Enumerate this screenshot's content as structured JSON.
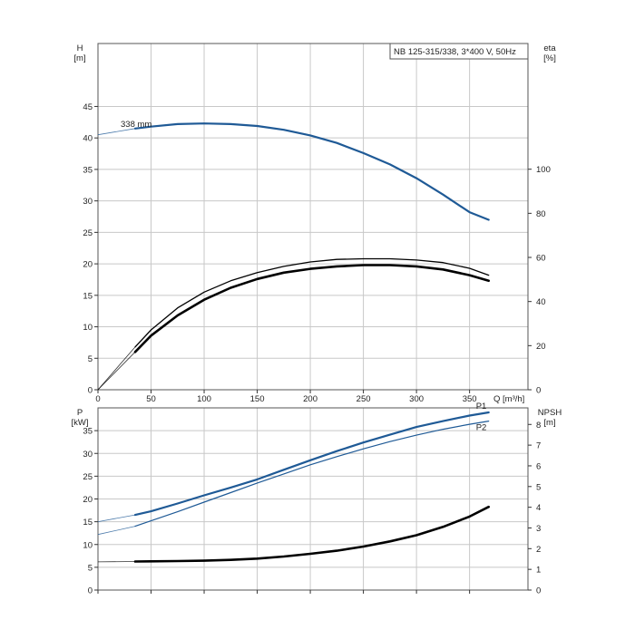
{
  "chart_data": [
    {
      "type": "line",
      "title": "NB 125-315/338, 3*400 V, 50Hz",
      "xlabel": "Q [m³/h]",
      "ylabel": "H\n[m]",
      "ylabel_right": "eta\n[%]",
      "xlim": [
        0,
        405
      ],
      "ylim": [
        0,
        55
      ],
      "ylim_right": [
        0,
        157
      ],
      "x_ticks": [
        "0",
        "50",
        "100",
        "150",
        "200",
        "250",
        "300",
        "350"
      ],
      "y_ticks": [
        "0",
        "5",
        "10",
        "15",
        "20",
        "25",
        "30",
        "35",
        "40",
        "45"
      ],
      "y_ticks_right": [
        "0",
        "20",
        "40",
        "60",
        "80",
        "100"
      ],
      "grid": true,
      "annotations": [
        "338 mm"
      ],
      "series": [
        {
          "name": "",
          "axis": "left",
          "color": "#1f5a96",
          "x_extension": [
            0,
            35
          ],
          "y_extension": [
            40.5,
            41.5
          ],
          "x": [
            35,
            50,
            75,
            100,
            125,
            150,
            175,
            200,
            225,
            250,
            275,
            300,
            325,
            350,
            368
          ],
          "y": [
            41.5,
            41.8,
            42.2,
            42.3,
            42.2,
            41.9,
            41.3,
            40.4,
            39.2,
            37.6,
            35.8,
            33.6,
            31.0,
            28.2,
            27.0
          ]
        },
        {
          "name": "",
          "axis": "left",
          "color": "#000000",
          "x_extension": [
            0,
            35
          ],
          "y_extension": [
            0,
            6.8
          ],
          "x": [
            35,
            50,
            75,
            100,
            125,
            150,
            175,
            200,
            225,
            250,
            275,
            300,
            325,
            350,
            368
          ],
          "y": [
            6.8,
            9.5,
            13.0,
            15.5,
            17.3,
            18.6,
            19.6,
            20.3,
            20.7,
            20.8,
            20.8,
            20.6,
            20.2,
            19.3,
            18.2
          ]
        },
        {
          "name": "",
          "axis": "left",
          "color": "#000000",
          "x_extension": [
            0,
            35
          ],
          "y_extension": [
            0,
            6.0
          ],
          "x": [
            35,
            50,
            75,
            100,
            125,
            150,
            175,
            200,
            225,
            250,
            275,
            300,
            325,
            350,
            368
          ],
          "y": [
            6.0,
            8.6,
            11.8,
            14.3,
            16.2,
            17.6,
            18.6,
            19.2,
            19.6,
            19.8,
            19.8,
            19.6,
            19.1,
            18.2,
            17.3
          ]
        }
      ]
    },
    {
      "type": "line",
      "title": "",
      "xlabel": "",
      "ylabel": "P\n[kW]",
      "ylabel_right": "NPSH\n[m]",
      "xlim": [
        0,
        405
      ],
      "ylim": [
        0,
        40
      ],
      "ylim_right": [
        0,
        8.8
      ],
      "y_ticks": [
        "0",
        "5",
        "10",
        "15",
        "20",
        "25",
        "30",
        "35"
      ],
      "y_ticks_right": [
        "0",
        "1",
        "2",
        "3",
        "4",
        "5",
        "6",
        "7",
        "8"
      ],
      "grid": true,
      "series": [
        {
          "name": "P1",
          "axis": "left",
          "color": "#1f5a96",
          "x_extension": [
            0,
            35
          ],
          "y_extension": [
            15.0,
            16.5
          ],
          "x": [
            35,
            50,
            75,
            100,
            125,
            150,
            175,
            200,
            225,
            250,
            275,
            300,
            325,
            350,
            368
          ],
          "y": [
            16.5,
            17.3,
            19.0,
            20.8,
            22.5,
            24.3,
            26.4,
            28.5,
            30.5,
            32.4,
            34.1,
            35.8,
            37.1,
            38.3,
            39.0
          ]
        },
        {
          "name": "P2",
          "axis": "left",
          "color": "#1f5a96",
          "x_extension": [
            0,
            35
          ],
          "y_extension": [
            12.2,
            14.0
          ],
          "x": [
            35,
            50,
            75,
            100,
            125,
            150,
            175,
            200,
            225,
            250,
            275,
            300,
            325,
            350,
            368
          ],
          "y": [
            14.0,
            15.2,
            17.2,
            19.3,
            21.4,
            23.5,
            25.5,
            27.5,
            29.3,
            31.0,
            32.6,
            34.0,
            35.3,
            36.4,
            37.1
          ]
        },
        {
          "name": "",
          "axis": "right",
          "color": "#000000",
          "x_extension": [
            0,
            35
          ],
          "y_extension": [
            1.36,
            1.38
          ],
          "x": [
            35,
            50,
            75,
            100,
            125,
            150,
            175,
            200,
            225,
            250,
            275,
            300,
            325,
            350,
            368
          ],
          "y": [
            1.38,
            1.39,
            1.4,
            1.42,
            1.46,
            1.52,
            1.62,
            1.75,
            1.9,
            2.1,
            2.35,
            2.65,
            3.05,
            3.55,
            4.02
          ]
        }
      ]
    }
  ]
}
